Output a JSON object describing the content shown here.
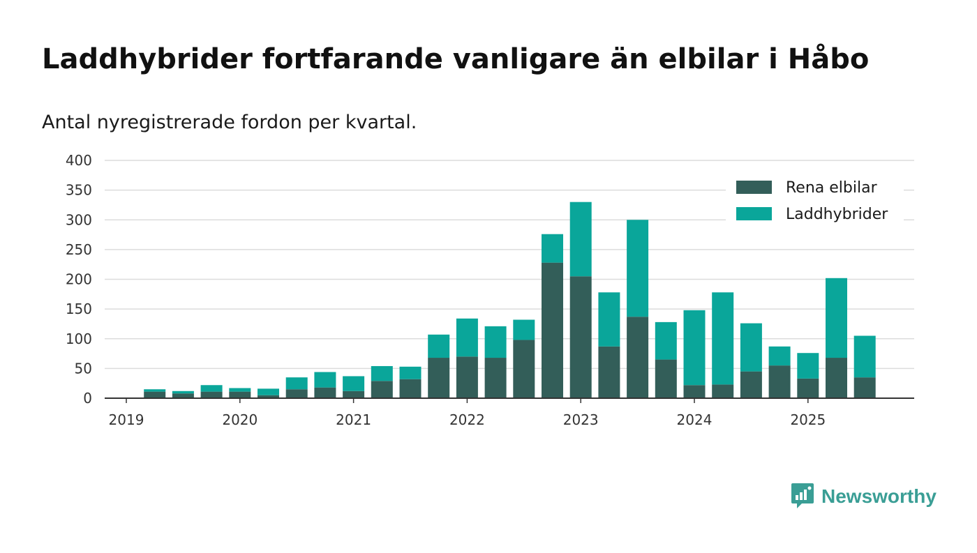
{
  "title": "Laddhybrider fortfarande vanligare än elbilar i Håbo",
  "subtitle": "Antal nyregistrerade fordon per kvartal.",
  "brand": {
    "name": "Newsworthy",
    "icon": "newsworthy-logo-icon",
    "color": "#3a9e95"
  },
  "chart_data": {
    "type": "bar",
    "stacked": true,
    "x": [
      "2019 Q1",
      "2019 Q2",
      "2019 Q3",
      "2019 Q4",
      "2020 Q1",
      "2020 Q2",
      "2020 Q3",
      "2020 Q4",
      "2021 Q1",
      "2021 Q2",
      "2021 Q3",
      "2021 Q4",
      "2022 Q1",
      "2022 Q2",
      "2022 Q3",
      "2022 Q4",
      "2023 Q1",
      "2023 Q2",
      "2023 Q3",
      "2023 Q4",
      "2024 Q1",
      "2024 Q2",
      "2024 Q3",
      "2024 Q4",
      "2025 Q1",
      "2025 Q2",
      "2025 Q3"
    ],
    "series": [
      {
        "name": "Rena elbilar",
        "color": "#335e59",
        "values": [
          0,
          11,
          8,
          11,
          11,
          5,
          15,
          18,
          12,
          29,
          32,
          68,
          70,
          68,
          98,
          228,
          205,
          87,
          137,
          65,
          22,
          23,
          45,
          55,
          33,
          68,
          35
        ]
      },
      {
        "name": "Laddhybrider",
        "color": "#0aa69a",
        "values": [
          0,
          4,
          4,
          11,
          6,
          11,
          20,
          26,
          25,
          25,
          21,
          39,
          64,
          53,
          34,
          48,
          125,
          91,
          163,
          63,
          126,
          155,
          81,
          32,
          43,
          134,
          70
        ]
      }
    ],
    "x_tick_labels": [
      "2019",
      "2020",
      "2021",
      "2022",
      "2023",
      "2024",
      "2025"
    ],
    "y_ticks": [
      0,
      50,
      100,
      150,
      200,
      250,
      300,
      350,
      400
    ],
    "ylim": [
      0,
      400
    ],
    "grid": true,
    "legend_position": "top-right",
    "xlabel": "",
    "ylabel": ""
  }
}
